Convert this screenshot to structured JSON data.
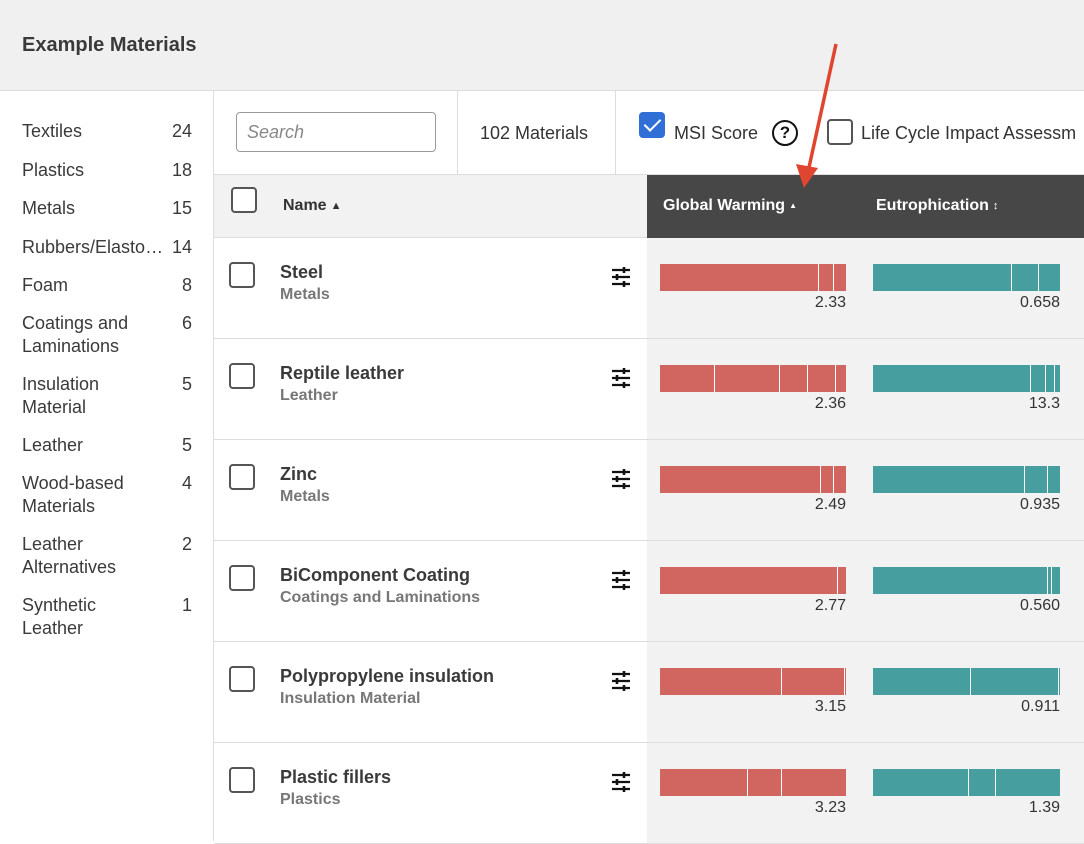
{
  "header": {
    "title": "Example Materials"
  },
  "sidebar": {
    "categories": [
      {
        "label": "Textiles",
        "count": "24"
      },
      {
        "label": "Plastics",
        "count": "18"
      },
      {
        "label": "Metals",
        "count": "15"
      },
      {
        "label": "Rubbers/Elastomers",
        "count": "14"
      },
      {
        "label": "Foam",
        "count": "8"
      },
      {
        "label": "Coatings and Laminations",
        "count": "6"
      },
      {
        "label": "Insulation Material",
        "count": "5"
      },
      {
        "label": "Leather",
        "count": "5"
      },
      {
        "label": "Wood-based Materials",
        "count": "4"
      },
      {
        "label": "Leather Alternatives",
        "count": "2"
      },
      {
        "label": "Synthetic Leather",
        "count": "1"
      }
    ]
  },
  "toolbar": {
    "search_placeholder": "Search",
    "materials_count": "102 Materials",
    "msi_label": "MSI Score",
    "msi_checked": true,
    "lcia_label": "Life Cycle Impact Assessm",
    "lcia_checked": false
  },
  "table": {
    "columns": {
      "name": "Name",
      "global_warming": "Global Warming",
      "eutrophication": "Eutrophication"
    },
    "sorted_by": "global_warming",
    "sort_direction": "ascending",
    "rows": [
      {
        "name": "Steel",
        "category": "Metals",
        "gw": "2.33",
        "eu": "0.658"
      },
      {
        "name": "Reptile leather",
        "category": "Leather",
        "gw": "2.36",
        "eu": "13.3"
      },
      {
        "name": "Zinc",
        "category": "Metals",
        "gw": "2.49",
        "eu": "0.935"
      },
      {
        "name": "BiComponent Coating",
        "category": "Coatings and Laminations",
        "gw": "2.77",
        "eu": "0.560"
      },
      {
        "name": "Polypropylene insulation",
        "category": "Insulation Material",
        "gw": "3.15",
        "eu": "0.911"
      },
      {
        "name": "Plastic fillers",
        "category": "Plastics",
        "gw": "3.23",
        "eu": "1.39"
      }
    ]
  },
  "colors": {
    "gw_bar": "#d0665f",
    "eu_bar": "#479e9e",
    "header_dark": "#474747",
    "annotation_arrow": "#e0452f",
    "checkbox_on": "#2f6fd6"
  }
}
